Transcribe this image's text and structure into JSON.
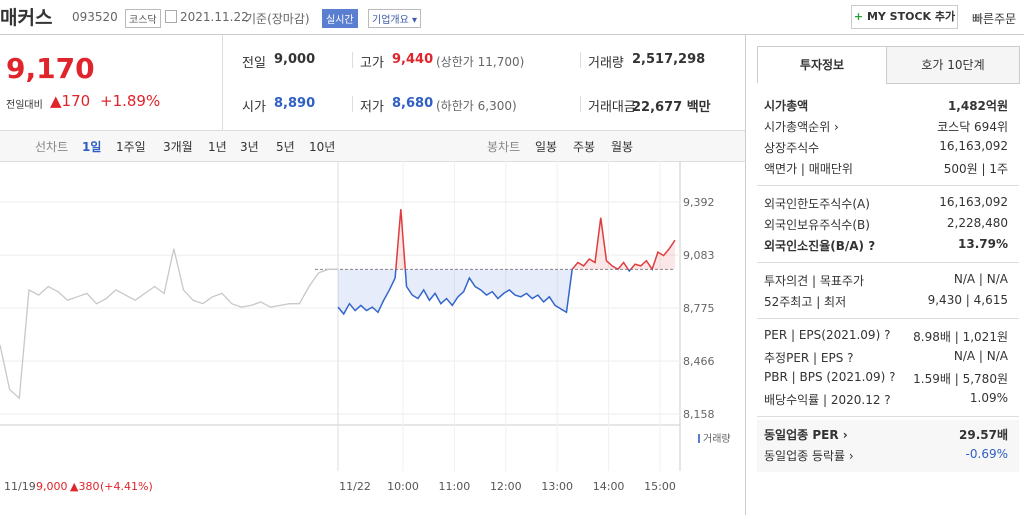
{
  "header": {
    "name": "매커스",
    "code": "093520",
    "market": "코스닥",
    "date": "2021.11.22",
    "basis": "기준(장마감)",
    "realtime": "실시간",
    "overview": "기업개요",
    "mystock": "MY STOCK 추가",
    "quick_order": "빠른주문"
  },
  "price": {
    "now": "9,170",
    "diff_label": "전일대비",
    "diff": "▲170",
    "rate": "+1.89%"
  },
  "stats": [
    [
      {
        "label": "전일",
        "value": "9,000"
      },
      {
        "label": "고가",
        "value": "9,440",
        "extra": "(상한가 11,700)"
      },
      {
        "label": "거래량",
        "value": "2,517,298"
      }
    ],
    [
      {
        "label": "시가",
        "value": "8,890"
      },
      {
        "label": "저가",
        "value": "8,680",
        "extra": "(하한가 6,300)"
      },
      {
        "label": "거래대금",
        "value": "22,677 백만"
      }
    ]
  ],
  "tabs": {
    "line_label": "선차트",
    "line": [
      "1일",
      "1주일",
      "3개월",
      "1년",
      "3년",
      "5년",
      "10년"
    ],
    "candle_label": "봉차트",
    "candle": [
      "일봉",
      "주봉",
      "월봉"
    ]
  },
  "chart_data": {
    "type": "line",
    "ylim": [
      8094,
      9549
    ],
    "base": 9000,
    "yticks": [
      {
        "value": 9392,
        "label": "9,392"
      },
      {
        "value": 9083,
        "label": "9,083"
      },
      {
        "value": 8775,
        "label": "8,775"
      },
      {
        "value": 8466,
        "label": "8,466"
      },
      {
        "value": 8158,
        "label": "8,158"
      }
    ],
    "volume_label": "거래량",
    "prev_day": {
      "date": "11/19",
      "close": "9,000",
      "change": "▲380",
      "rate": "(+4.41%)"
    },
    "day": "11/22",
    "times": [
      "10:00",
      "11:00",
      "12:00",
      "13:00",
      "14:00",
      "15:00"
    ],
    "series": [
      {
        "color": "#c8c8c8",
        "values": [
          8560,
          8300,
          8250,
          8880,
          8850,
          8900,
          8870,
          8820,
          8840,
          8860,
          8800,
          8830,
          8880,
          8850,
          8820,
          8860,
          8900,
          8860,
          9120,
          8880,
          8820,
          8800,
          8840,
          8860,
          8800,
          8780,
          8790,
          8810,
          8780,
          8790,
          8800,
          8800,
          8900,
          8980,
          9000,
          9000
        ]
      },
      {
        "color": "#3366cc",
        "up_color": "#e03c3c",
        "values": [
          8780,
          8740,
          8800,
          8760,
          8790,
          8760,
          8780,
          8750,
          8820,
          8880,
          8950,
          9350,
          8900,
          8850,
          8830,
          8880,
          8820,
          8860,
          8800,
          8830,
          8790,
          8840,
          8870,
          8950,
          8900,
          8880,
          8850,
          8870,
          8830,
          8860,
          8880,
          8850,
          8840,
          8860,
          8830,
          8850,
          8810,
          8840,
          8790,
          8770,
          8750,
          9000,
          9040,
          9020,
          9060,
          9040,
          9300,
          9050,
          9020,
          9000,
          9040,
          8990,
          9030,
          9020,
          9050,
          9000,
          9100,
          9080,
          9120,
          9170
        ]
      }
    ]
  },
  "info": {
    "tabs": [
      "투자정보",
      "호가 10단계"
    ],
    "groups": [
      [
        {
          "label": "시가총액",
          "value": "1,482억원"
        },
        {
          "label": "시가총액순위 ›",
          "value": "코스닥 694위"
        },
        {
          "label": "상장주식수",
          "value": "16,163,092"
        },
        {
          "label": "액면가 | 매매단위",
          "value": "500원 | 1주"
        }
      ],
      [
        {
          "label": "외국인한도주식수(A)",
          "value": "16,163,092"
        },
        {
          "label": "외국인보유주식수(B)",
          "value": "2,228,480"
        },
        {
          "label": "외국인소진율(B/A) ?",
          "value": "13.79%"
        }
      ],
      [
        {
          "label": "투자의견 | 목표주가",
          "value": "N/A | N/A"
        },
        {
          "label": "52주최고 | 최저",
          "value": "9,430 | 4,615"
        }
      ],
      [
        {
          "label": "PER | EPS(2021.09) ?",
          "value": "8.98배 | 1,021원"
        },
        {
          "label": "추정PER | EPS ?",
          "value": "N/A | N/A"
        },
        {
          "label": "PBR | BPS (2021.09) ?",
          "value": "1.59배 | 5,780원"
        },
        {
          "label": "배당수익률 | 2020.12 ?",
          "value": "1.09%"
        }
      ],
      [
        {
          "label": "동일업종 PER ›",
          "value": "29.57배"
        },
        {
          "label": "동일업종 등락률 ›",
          "value": "-0.69%"
        }
      ]
    ]
  }
}
